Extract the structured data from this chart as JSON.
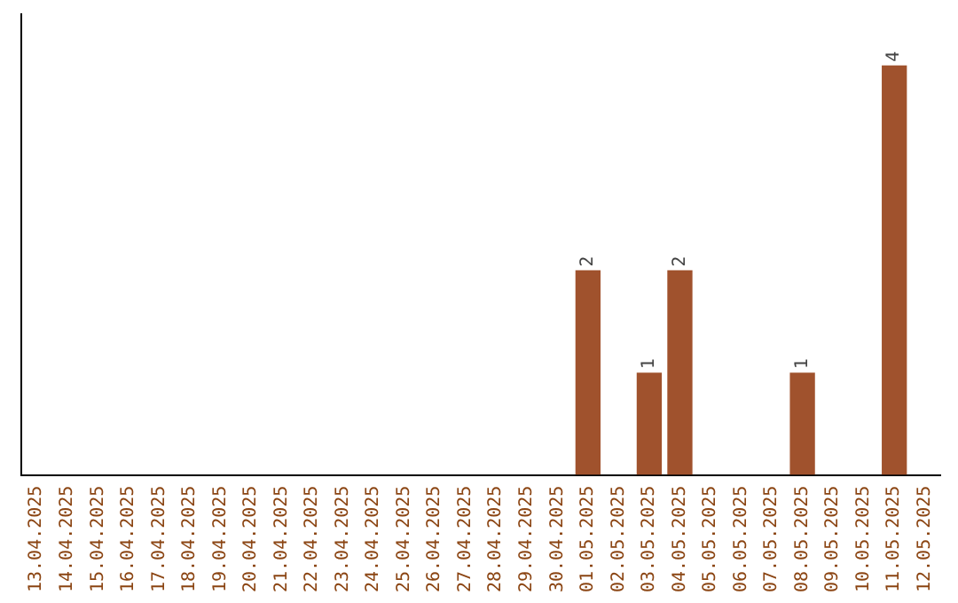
{
  "chart_data": {
    "type": "bar",
    "categories": [
      "13.04.2025",
      "14.04.2025",
      "15.04.2025",
      "16.04.2025",
      "17.04.2025",
      "18.04.2025",
      "19.04.2025",
      "20.04.2025",
      "21.04.2025",
      "22.04.2025",
      "23.04.2025",
      "24.04.2025",
      "25.04.2025",
      "26.04.2025",
      "27.04.2025",
      "28.04.2025",
      "29.04.2025",
      "30.04.2025",
      "01.05.2025",
      "02.05.2025",
      "03.05.2025",
      "04.05.2025",
      "05.05.2025",
      "06.05.2025",
      "07.05.2025",
      "08.05.2025",
      "09.05.2025",
      "10.05.2025",
      "11.05.2025",
      "12.05.2025"
    ],
    "values": [
      null,
      null,
      null,
      null,
      null,
      null,
      null,
      null,
      null,
      null,
      null,
      null,
      null,
      null,
      null,
      null,
      null,
      null,
      2,
      null,
      1,
      2,
      null,
      null,
      null,
      1,
      null,
      null,
      4,
      null
    ],
    "data_labels": true,
    "color": "#a0522d",
    "grid": false,
    "legend": false
  }
}
